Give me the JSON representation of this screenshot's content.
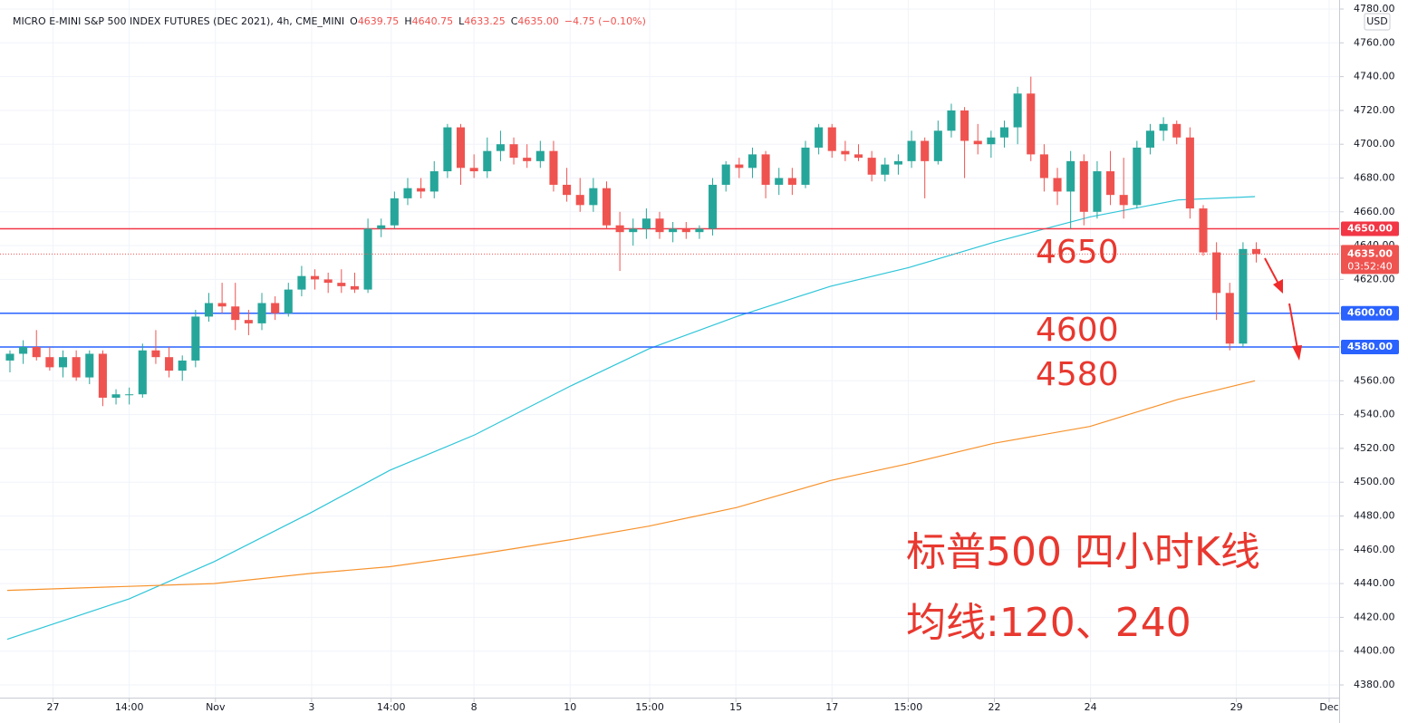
{
  "chart_data": {
    "type": "candlestick",
    "header": {
      "title": "MICRO E-MINI S&P 500 INDEX FUTURES (DEC 2021), 4h, CME_MINI",
      "quote": [
        {
          "label": "O",
          "value": "4639.75"
        },
        {
          "label": "H",
          "value": "4640.75"
        },
        {
          "label": "L",
          "value": "4633.25"
        },
        {
          "label": "C",
          "value": "4635.00"
        }
      ],
      "change": "−4.75 (−0.10%)"
    },
    "currency": "USD",
    "up_color": "#26a69a",
    "down_color": "#ef5350",
    "xlim": [
      0,
      202
    ],
    "xticks": [
      {
        "value": 8,
        "label": "27"
      },
      {
        "value": 19.5,
        "label": "14:00"
      },
      {
        "value": 32.5,
        "label": "Nov"
      },
      {
        "value": 47,
        "label": "3"
      },
      {
        "value": 59,
        "label": "14:00"
      },
      {
        "value": 71.5,
        "label": "8"
      },
      {
        "value": 86,
        "label": "10"
      },
      {
        "value": 98,
        "label": "15:00"
      },
      {
        "value": 111,
        "label": "15"
      },
      {
        "value": 125.5,
        "label": "17"
      },
      {
        "value": 137,
        "label": "15:00"
      },
      {
        "value": 150,
        "label": "22"
      },
      {
        "value": 164.5,
        "label": "24"
      },
      {
        "value": 186.5,
        "label": "29"
      },
      {
        "value": 200.5,
        "label": "Dec"
      }
    ],
    "ylim": [
      4380,
      4780
    ],
    "yticks": [
      {
        "value": 4380,
        "label": "4380.00"
      },
      {
        "value": 4400,
        "label": "4400.00"
      },
      {
        "value": 4420,
        "label": "4420.00"
      },
      {
        "value": 4440,
        "label": "4440.00"
      },
      {
        "value": 4460,
        "label": "4460.00"
      },
      {
        "value": 4480,
        "label": "4480.00"
      },
      {
        "value": 4500,
        "label": "4500.00"
      },
      {
        "value": 4520,
        "label": "4520.00"
      },
      {
        "value": 4540,
        "label": "4540.00"
      },
      {
        "value": 4560,
        "label": "4560.00"
      },
      {
        "value": 4580,
        "label": "4580.00"
      },
      {
        "value": 4600,
        "label": "4600.00"
      },
      {
        "value": 4620,
        "label": "4620.00"
      },
      {
        "value": 4640,
        "label": "4640.00"
      },
      {
        "value": 4660,
        "label": "4660.00"
      },
      {
        "value": 4680,
        "label": "4680.00"
      },
      {
        "value": 4700,
        "label": "4700.00"
      },
      {
        "value": 4720,
        "label": "4720.00"
      },
      {
        "value": 4740,
        "label": "4740.00"
      },
      {
        "value": 4760,
        "label": "4760.00"
      },
      {
        "value": 4780,
        "label": "4780.00"
      }
    ],
    "x": [
      1.5,
      3.5,
      5.5,
      7.5,
      9.5,
      11.5,
      13.5,
      15.5,
      17.5,
      19.5,
      21.5,
      23.5,
      25.5,
      27.5,
      29.5,
      31.5,
      33.5,
      35.5,
      37.5,
      39.5,
      41.5,
      43.5,
      45.5,
      47.5,
      49.5,
      51.5,
      53.5,
      55.5,
      57.5,
      59.5,
      61.5,
      63.5,
      65.5,
      67.5,
      69.5,
      71.5,
      73.5,
      75.5,
      77.5,
      79.5,
      81.5,
      83.5,
      85.5,
      87.5,
      89.5,
      91.5,
      93.5,
      95.5,
      97.5,
      99.5,
      101.5,
      103.5,
      105.5,
      107.5,
      109.5,
      111.5,
      113.5,
      115.5,
      117.5,
      119.5,
      121.5,
      123.5,
      125.5,
      127.5,
      129.5,
      131.5,
      133.5,
      135.5,
      137.5,
      139.5,
      141.5,
      143.5,
      145.5,
      147.5,
      149.5,
      151.5,
      153.5,
      155.5,
      157.5,
      159.5,
      161.5,
      163.5,
      165.5,
      167.5,
      169.5,
      171.5,
      173.5,
      175.5,
      177.5,
      179.5,
      181.5,
      183.5,
      185.5,
      187.5,
      189.5
    ],
    "open": [
      4572,
      4576,
      4580,
      4574,
      4568,
      4574,
      4562,
      4576,
      4550,
      4552,
      4552,
      4578,
      4574,
      4566,
      4572,
      4598,
      4606,
      4604,
      4596,
      4594,
      4606,
      4600,
      4614,
      4622,
      4620,
      4618,
      4616,
      4614,
      4650,
      4652,
      4668,
      4674,
      4672,
      4684,
      4710,
      4686,
      4684,
      4696,
      4700,
      4692,
      4690,
      4696,
      4676,
      4670,
      4664,
      4674,
      4652,
      4648,
      4650,
      4656,
      4648,
      4650,
      4648,
      4650,
      4676,
      4688,
      4686,
      4694,
      4676,
      4680,
      4676,
      4698,
      4710,
      4696,
      4694,
      4692,
      4682,
      4688,
      4690,
      4702,
      4690,
      4708,
      4720,
      4702,
      4700,
      4704,
      4710,
      4730,
      4694,
      4680,
      4672,
      4690,
      4660,
      4684,
      4670,
      4664,
      4698,
      4708,
      4712,
      4704,
      4662,
      4636,
      4612,
      4582,
      4638
    ],
    "high": [
      4578,
      4584,
      4590,
      4580,
      4578,
      4578,
      4578,
      4578,
      4555,
      4556,
      4582,
      4590,
      4580,
      4575,
      4602,
      4612,
      4618,
      4618,
      4602,
      4612,
      4610,
      4618,
      4628,
      4626,
      4624,
      4626,
      4624,
      4656,
      4656,
      4672,
      4680,
      4680,
      4690,
      4712,
      4712,
      4694,
      4704,
      4708,
      4704,
      4700,
      4702,
      4702,
      4686,
      4680,
      4680,
      4678,
      4660,
      4656,
      4662,
      4660,
      4654,
      4654,
      4652,
      4680,
      4690,
      4692,
      4698,
      4696,
      4686,
      4686,
      4702,
      4712,
      4712,
      4702,
      4700,
      4696,
      4692,
      4694,
      4708,
      4704,
      4714,
      4724,
      4722,
      4712,
      4708,
      4714,
      4734,
      4740,
      4700,
      4686,
      4696,
      4694,
      4690,
      4696,
      4692,
      4702,
      4712,
      4716,
      4714,
      4710,
      4664,
      4642,
      4618,
      4642,
      4642
    ],
    "low": [
      4565,
      4570,
      4572,
      4566,
      4562,
      4560,
      4558,
      4545,
      4546,
      4546,
      4550,
      4570,
      4562,
      4560,
      4568,
      4595,
      4600,
      4590,
      4587,
      4590,
      4596,
      4598,
      4610,
      4614,
      4612,
      4612,
      4612,
      4612,
      4645,
      4650,
      4664,
      4668,
      4668,
      4680,
      4676,
      4680,
      4680,
      4690,
      4688,
      4686,
      4686,
      4672,
      4666,
      4660,
      4660,
      4650,
      4625,
      4640,
      4644,
      4644,
      4642,
      4644,
      4644,
      4646,
      4672,
      4680,
      4680,
      4668,
      4670,
      4670,
      4674,
      4694,
      4692,
      4690,
      4690,
      4678,
      4678,
      4682,
      4686,
      4668,
      4688,
      4704,
      4680,
      4694,
      4692,
      4698,
      4700,
      4690,
      4672,
      4664,
      4650,
      4652,
      4656,
      4664,
      4656,
      4662,
      4694,
      4702,
      4700,
      4656,
      4634,
      4596,
      4578,
      4580,
      4630
    ],
    "close": [
      4576,
      4580,
      4574,
      4568,
      4574,
      4562,
      4576,
      4550,
      4552,
      4552,
      4578,
      4574,
      4566,
      4572,
      4598,
      4606,
      4604,
      4596,
      4594,
      4606,
      4600,
      4614,
      4622,
      4620,
      4618,
      4616,
      4614,
      4650,
      4652,
      4668,
      4674,
      4672,
      4684,
      4710,
      4686,
      4684,
      4696,
      4700,
      4692,
      4690,
      4696,
      4676,
      4670,
      4664,
      4674,
      4652,
      4648,
      4650,
      4656,
      4648,
      4650,
      4648,
      4650,
      4676,
      4688,
      4686,
      4694,
      4676,
      4680,
      4676,
      4698,
      4710,
      4696,
      4694,
      4692,
      4682,
      4688,
      4690,
      4702,
      4690,
      4708,
      4720,
      4702,
      4700,
      4704,
      4710,
      4730,
      4694,
      4680,
      4672,
      4690,
      4660,
      4684,
      4670,
      4664,
      4698,
      4708,
      4712,
      4704,
      4662,
      4636,
      4612,
      4582,
      4638,
      4635
    ],
    "lines": [
      {
        "color": "#2ec5d8",
        "x": [
          1.1,
          19.5,
          32.3,
          46.9,
          58.8,
          71.6,
          86.1,
          97.9,
          111.1,
          125.3,
          137.1,
          149.9,
          164.4,
          177.7,
          189.3
        ],
        "values": [
          4407,
          4431,
          4453,
          4482,
          4507,
          4528,
          4557,
          4579,
          4598,
          4616,
          4627,
          4642,
          4657,
          4667,
          4669
        ]
      },
      {
        "color": "#f7922c",
        "x": [
          1.1,
          32.3,
          46.9,
          58.8,
          71.6,
          86.1,
          97.9,
          111.1,
          125.3,
          137.1,
          149.9,
          164.4,
          177.7,
          189.3
        ],
        "values": [
          4436,
          4440,
          4446,
          4450,
          4457,
          4466,
          4474,
          4485,
          4501,
          4511,
          4523,
          4533,
          4549,
          4560
        ]
      }
    ],
    "levels": [
      {
        "value": 4650,
        "label": "4650.00",
        "color": "#f23645"
      },
      {
        "value": 4600,
        "label": "4600.00",
        "color": "#2962ff"
      },
      {
        "value": 4580,
        "label": "4580.00",
        "color": "#2962ff"
      }
    ],
    "last_price": {
      "value": 4635,
      "label": "4635.00",
      "countdown": "03:52:40"
    },
    "annotations": [
      "4650",
      "4600",
      "4580",
      "标普500 四小时K线",
      "均线:120、240"
    ]
  }
}
